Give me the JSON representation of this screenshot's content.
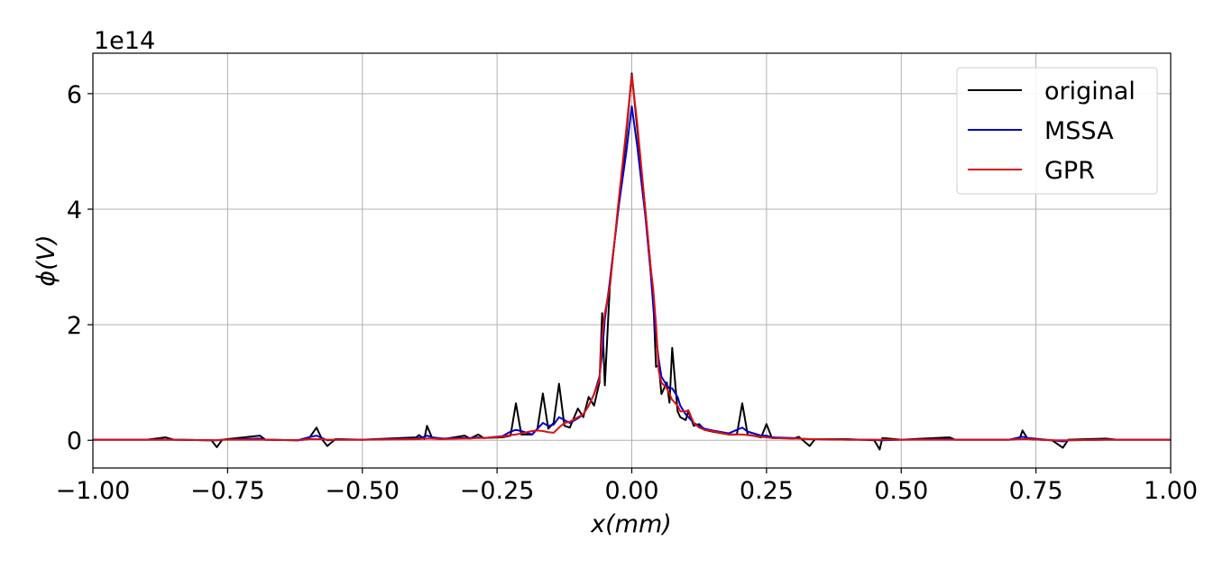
{
  "chart_data": {
    "type": "line",
    "xlabel": "x(mm)",
    "ylabel": "ϕ(V)",
    "offset_label": "1e14",
    "xlim": [
      -1,
      1
    ],
    "ylim": [
      -0.48,
      6.7
    ],
    "xticks": [
      {
        "value": -1,
        "label": "−1.00"
      },
      {
        "value": -0.75,
        "label": "−0.75"
      },
      {
        "value": -0.5,
        "label": "−0.50"
      },
      {
        "value": -0.25,
        "label": "−0.25"
      },
      {
        "value": 0,
        "label": "0.00"
      },
      {
        "value": 0.25,
        "label": "0.25"
      },
      {
        "value": 0.5,
        "label": "0.50"
      },
      {
        "value": 0.75,
        "label": "0.75"
      },
      {
        "value": 1,
        "label": "1.00"
      }
    ],
    "yticks": [
      0,
      2,
      4,
      6
    ],
    "grid": true,
    "legend": "upper right",
    "x": [
      -1.0,
      -0.9,
      -0.865,
      -0.85,
      -0.78,
      -0.77,
      -0.76,
      -0.69,
      -0.68,
      -0.62,
      -0.6,
      -0.585,
      -0.575,
      -0.565,
      -0.55,
      -0.5,
      -0.4,
      -0.395,
      -0.385,
      -0.38,
      -0.37,
      -0.35,
      -0.31,
      -0.3,
      -0.285,
      -0.275,
      -0.24,
      -0.225,
      -0.215,
      -0.205,
      -0.185,
      -0.175,
      -0.165,
      -0.155,
      -0.145,
      -0.135,
      -0.125,
      -0.115,
      -0.1,
      -0.09,
      -0.08,
      -0.07,
      -0.06,
      -0.055,
      -0.05,
      -0.04,
      -0.025,
      -0.01,
      0,
      0.01,
      0.025,
      0.035,
      0.04,
      0.045,
      0.05,
      0.055,
      0.065,
      0.07,
      0.075,
      0.085,
      0.09,
      0.1,
      0.105,
      0.115,
      0.125,
      0.135,
      0.15,
      0.18,
      0.195,
      0.205,
      0.215,
      0.24,
      0.25,
      0.26,
      0.3,
      0.31,
      0.33,
      0.34,
      0.4,
      0.45,
      0.46,
      0.465,
      0.5,
      0.59,
      0.6,
      0.7,
      0.72,
      0.725,
      0.735,
      0.78,
      0.8,
      0.81,
      0.88,
      0.9,
      1.0
    ],
    "series": [
      {
        "name": "original",
        "color": "#000000",
        "values": [
          0.01,
          0.01,
          0.05,
          0.01,
          0.0,
          -0.12,
          0.01,
          0.08,
          0.01,
          0.0,
          0.02,
          0.22,
          0.02,
          -0.1,
          0.02,
          0.01,
          0.05,
          0.09,
          0.02,
          0.25,
          0.03,
          0.02,
          0.08,
          0.03,
          0.1,
          0.04,
          0.05,
          0.08,
          0.64,
          0.1,
          0.1,
          0.2,
          0.81,
          0.2,
          0.3,
          0.98,
          0.25,
          0.22,
          0.55,
          0.4,
          0.75,
          0.6,
          1.0,
          2.2,
          0.95,
          2.8,
          4.0,
          5.3,
          6.35,
          5.4,
          4.0,
          3.0,
          2.4,
          1.27,
          1.3,
          0.8,
          1.0,
          0.65,
          1.6,
          0.5,
          0.4,
          0.35,
          0.5,
          0.25,
          0.28,
          0.18,
          0.15,
          0.1,
          0.1,
          0.64,
          0.1,
          0.05,
          0.28,
          0.04,
          0.03,
          0.06,
          -0.1,
          0.02,
          0.02,
          0.0,
          -0.16,
          0.04,
          0.01,
          0.05,
          0.01,
          0.01,
          0.03,
          0.17,
          0.02,
          0.0,
          -0.13,
          0.01,
          0.03,
          0.01,
          0.01
        ]
      },
      {
        "name": "MSSA",
        "color": "#0000cc",
        "values": [
          0.01,
          0.01,
          0.01,
          0.01,
          0.0,
          0.0,
          0.01,
          0.03,
          0.01,
          0.0,
          0.05,
          0.08,
          0.04,
          0.0,
          0.01,
          0.01,
          0.03,
          0.04,
          0.06,
          0.08,
          0.05,
          0.03,
          0.04,
          0.04,
          0.05,
          0.04,
          0.07,
          0.15,
          0.18,
          0.16,
          0.1,
          0.2,
          0.3,
          0.25,
          0.27,
          0.4,
          0.35,
          0.3,
          0.38,
          0.45,
          0.6,
          0.8,
          1.1,
          1.5,
          2.1,
          2.8,
          4.0,
          5.0,
          5.78,
          5.1,
          3.9,
          2.9,
          2.3,
          1.8,
          1.4,
          1.1,
          0.95,
          0.9,
          0.9,
          0.75,
          0.6,
          0.45,
          0.4,
          0.3,
          0.25,
          0.2,
          0.17,
          0.12,
          0.18,
          0.22,
          0.15,
          0.08,
          0.08,
          0.05,
          0.04,
          0.03,
          0.02,
          0.02,
          0.01,
          0.01,
          0.0,
          0.0,
          0.01,
          0.02,
          0.01,
          0.01,
          0.05,
          0.06,
          0.04,
          0.0,
          -0.02,
          0.0,
          0.01,
          0.01,
          0.01
        ]
      },
      {
        "name": "GPR",
        "color": "#dd1111",
        "values": [
          0.01,
          0.01,
          0.01,
          0.01,
          0.0,
          0.0,
          0.01,
          0.01,
          0.01,
          0.0,
          0.02,
          0.02,
          0.02,
          0.01,
          0.01,
          0.01,
          0.02,
          0.02,
          0.03,
          0.03,
          0.03,
          0.02,
          0.03,
          0.03,
          0.04,
          0.04,
          0.06,
          0.09,
          0.1,
          0.12,
          0.16,
          0.17,
          0.16,
          0.14,
          0.13,
          0.22,
          0.3,
          0.32,
          0.4,
          0.45,
          0.6,
          0.8,
          1.05,
          1.8,
          2.2,
          2.7,
          4.1,
          5.4,
          6.32,
          5.5,
          4.0,
          3.0,
          2.6,
          2.0,
          1.2,
          1.0,
          0.9,
          0.8,
          0.7,
          0.6,
          0.5,
          0.5,
          0.52,
          0.3,
          0.22,
          0.18,
          0.16,
          0.1,
          0.1,
          0.1,
          0.09,
          0.06,
          0.05,
          0.04,
          0.03,
          0.03,
          0.02,
          0.02,
          0.01,
          0.01,
          0.01,
          0.01,
          0.01,
          0.01,
          0.01,
          0.01,
          0.02,
          0.02,
          0.02,
          0.0,
          0.0,
          0.0,
          0.01,
          0.01,
          0.01
        ]
      }
    ]
  }
}
